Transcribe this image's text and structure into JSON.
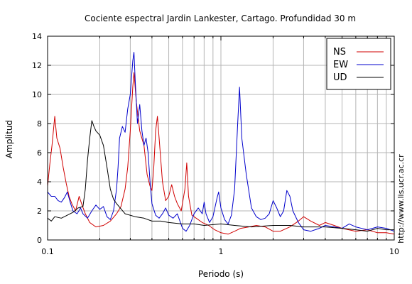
{
  "chart_data": {
    "type": "line",
    "title": "Cociente espectral Jardin Lankester, Cartago. Profundidad 30 m",
    "xlabel": "Periodo (s)",
    "ylabel": "Amplitud",
    "xscale": "log",
    "xlim": [
      0.1,
      10
    ],
    "ylim": [
      0,
      14
    ],
    "x_ticks": [
      0.1,
      1,
      10
    ],
    "x_tick_labels": [
      "0.1",
      "1",
      "10"
    ],
    "y_ticks": [
      0,
      2,
      4,
      6,
      8,
      10,
      12,
      14
    ],
    "y_tick_labels": [
      "0",
      "2",
      "4",
      "6",
      "8",
      "10",
      "12",
      "14"
    ],
    "grid": true,
    "legend_position": "top-right",
    "annotation": "http://www.lis.ucr.ac.cr",
    "series": [
      {
        "name": "NS",
        "color": "#d00000",
        "points": [
          [
            0.1,
            3.7
          ],
          [
            0.103,
            5.2
          ],
          [
            0.106,
            6.5
          ],
          [
            0.11,
            8.5
          ],
          [
            0.113,
            7.0
          ],
          [
            0.118,
            6.3
          ],
          [
            0.123,
            5.0
          ],
          [
            0.128,
            3.9
          ],
          [
            0.133,
            3.0
          ],
          [
            0.138,
            2.5
          ],
          [
            0.145,
            2.0
          ],
          [
            0.152,
            3.0
          ],
          [
            0.158,
            2.4
          ],
          [
            0.165,
            1.8
          ],
          [
            0.175,
            1.2
          ],
          [
            0.19,
            0.9
          ],
          [
            0.21,
            1.0
          ],
          [
            0.23,
            1.3
          ],
          [
            0.25,
            1.8
          ],
          [
            0.265,
            2.3
          ],
          [
            0.28,
            3.5
          ],
          [
            0.29,
            5.0
          ],
          [
            0.3,
            7.5
          ],
          [
            0.31,
            10.5
          ],
          [
            0.315,
            11.5
          ],
          [
            0.325,
            9.5
          ],
          [
            0.34,
            7.5
          ],
          [
            0.36,
            6.5
          ],
          [
            0.375,
            4.5
          ],
          [
            0.39,
            3.7
          ],
          [
            0.4,
            3.4
          ],
          [
            0.41,
            5.0
          ],
          [
            0.42,
            7.5
          ],
          [
            0.43,
            8.5
          ],
          [
            0.44,
            7.0
          ],
          [
            0.46,
            4.0
          ],
          [
            0.48,
            2.7
          ],
          [
            0.5,
            3.0
          ],
          [
            0.52,
            3.8
          ],
          [
            0.54,
            3.0
          ],
          [
            0.56,
            2.5
          ],
          [
            0.59,
            2.0
          ],
          [
            0.62,
            3.5
          ],
          [
            0.635,
            5.3
          ],
          [
            0.65,
            3.0
          ],
          [
            0.68,
            1.7
          ],
          [
            0.72,
            1.5
          ],
          [
            0.78,
            1.2
          ],
          [
            0.85,
            1.0
          ],
          [
            0.92,
            0.7
          ],
          [
            1.0,
            0.5
          ],
          [
            1.1,
            0.4
          ],
          [
            1.2,
            0.6
          ],
          [
            1.3,
            0.8
          ],
          [
            1.45,
            0.9
          ],
          [
            1.6,
            1.0
          ],
          [
            1.8,
            0.9
          ],
          [
            2.0,
            0.6
          ],
          [
            2.2,
            0.6
          ],
          [
            2.5,
            0.9
          ],
          [
            2.8,
            1.3
          ],
          [
            3.0,
            1.6
          ],
          [
            3.3,
            1.3
          ],
          [
            3.7,
            1.0
          ],
          [
            4.0,
            1.2
          ],
          [
            4.5,
            1.0
          ],
          [
            5.0,
            0.8
          ],
          [
            6.0,
            0.6
          ],
          [
            7.0,
            0.7
          ],
          [
            8.0,
            0.5
          ],
          [
            9.0,
            0.5
          ],
          [
            10.0,
            0.4
          ]
        ]
      },
      {
        "name": "EW",
        "color": "#0000cc",
        "points": [
          [
            0.1,
            3.3
          ],
          [
            0.105,
            3.0
          ],
          [
            0.11,
            3.0
          ],
          [
            0.115,
            2.7
          ],
          [
            0.12,
            2.6
          ],
          [
            0.125,
            2.9
          ],
          [
            0.13,
            3.3
          ],
          [
            0.135,
            2.6
          ],
          [
            0.14,
            2.0
          ],
          [
            0.148,
            1.8
          ],
          [
            0.155,
            2.2
          ],
          [
            0.16,
            1.8
          ],
          [
            0.17,
            1.5
          ],
          [
            0.18,
            2.0
          ],
          [
            0.19,
            2.4
          ],
          [
            0.2,
            2.1
          ],
          [
            0.21,
            2.3
          ],
          [
            0.22,
            1.6
          ],
          [
            0.23,
            1.4
          ],
          [
            0.24,
            2.0
          ],
          [
            0.25,
            3.5
          ],
          [
            0.255,
            5.0
          ],
          [
            0.26,
            7.0
          ],
          [
            0.27,
            7.8
          ],
          [
            0.28,
            7.4
          ],
          [
            0.29,
            9.0
          ],
          [
            0.3,
            10.0
          ],
          [
            0.31,
            12.3
          ],
          [
            0.315,
            12.9
          ],
          [
            0.32,
            11.0
          ],
          [
            0.33,
            8.0
          ],
          [
            0.34,
            9.3
          ],
          [
            0.35,
            7.5
          ],
          [
            0.36,
            6.5
          ],
          [
            0.37,
            7.0
          ],
          [
            0.38,
            6.0
          ],
          [
            0.39,
            4.0
          ],
          [
            0.4,
            2.5
          ],
          [
            0.42,
            1.7
          ],
          [
            0.44,
            1.5
          ],
          [
            0.46,
            1.8
          ],
          [
            0.48,
            2.2
          ],
          [
            0.5,
            1.7
          ],
          [
            0.53,
            1.5
          ],
          [
            0.56,
            1.8
          ],
          [
            0.58,
            1.3
          ],
          [
            0.6,
            0.8
          ],
          [
            0.63,
            0.6
          ],
          [
            0.66,
            1.0
          ],
          [
            0.7,
            1.8
          ],
          [
            0.74,
            2.2
          ],
          [
            0.78,
            1.8
          ],
          [
            0.8,
            2.6
          ],
          [
            0.82,
            1.8
          ],
          [
            0.86,
            1.2
          ],
          [
            0.9,
            1.6
          ],
          [
            0.95,
            2.9
          ],
          [
            0.97,
            3.3
          ],
          [
            1.0,
            2.2
          ],
          [
            1.05,
            1.4
          ],
          [
            1.1,
            1.1
          ],
          [
            1.15,
            1.7
          ],
          [
            1.2,
            3.5
          ],
          [
            1.25,
            8.0
          ],
          [
            1.28,
            10.5
          ],
          [
            1.32,
            7.0
          ],
          [
            1.4,
            4.5
          ],
          [
            1.5,
            2.2
          ],
          [
            1.6,
            1.6
          ],
          [
            1.7,
            1.4
          ],
          [
            1.8,
            1.5
          ],
          [
            1.9,
            1.8
          ],
          [
            2.0,
            2.7
          ],
          [
            2.1,
            2.2
          ],
          [
            2.2,
            1.6
          ],
          [
            2.3,
            2.0
          ],
          [
            2.4,
            3.4
          ],
          [
            2.5,
            3.0
          ],
          [
            2.6,
            2.0
          ],
          [
            2.8,
            1.2
          ],
          [
            3.0,
            0.7
          ],
          [
            3.3,
            0.6
          ],
          [
            3.7,
            0.8
          ],
          [
            4.0,
            1.0
          ],
          [
            4.5,
            0.9
          ],
          [
            5.0,
            0.8
          ],
          [
            5.5,
            1.1
          ],
          [
            6.0,
            0.9
          ],
          [
            7.0,
            0.7
          ],
          [
            8.0,
            0.9
          ],
          [
            9.0,
            0.8
          ],
          [
            10.0,
            0.6
          ]
        ]
      },
      {
        "name": "UD",
        "color": "#000000",
        "points": [
          [
            0.1,
            1.5
          ],
          [
            0.105,
            1.3
          ],
          [
            0.11,
            1.6
          ],
          [
            0.12,
            1.5
          ],
          [
            0.13,
            1.7
          ],
          [
            0.14,
            1.9
          ],
          [
            0.15,
            2.2
          ],
          [
            0.16,
            2.3
          ],
          [
            0.165,
            3.5
          ],
          [
            0.17,
            5.5
          ],
          [
            0.175,
            7.0
          ],
          [
            0.18,
            8.2
          ],
          [
            0.185,
            7.8
          ],
          [
            0.19,
            7.5
          ],
          [
            0.2,
            7.2
          ],
          [
            0.21,
            6.5
          ],
          [
            0.22,
            5.0
          ],
          [
            0.23,
            3.5
          ],
          [
            0.24,
            2.8
          ],
          [
            0.25,
            2.5
          ],
          [
            0.28,
            1.8
          ],
          [
            0.32,
            1.6
          ],
          [
            0.36,
            1.5
          ],
          [
            0.4,
            1.3
          ],
          [
            0.45,
            1.3
          ],
          [
            0.5,
            1.2
          ],
          [
            0.6,
            1.1
          ],
          [
            0.7,
            1.1
          ],
          [
            0.8,
            1.0
          ],
          [
            1.0,
            1.1
          ],
          [
            1.2,
            1.0
          ],
          [
            1.5,
            0.9
          ],
          [
            2.0,
            1.0
          ],
          [
            2.5,
            1.0
          ],
          [
            3.0,
            0.9
          ],
          [
            4.0,
            0.9
          ],
          [
            5.0,
            0.8
          ],
          [
            6.0,
            0.7
          ],
          [
            7.0,
            0.6
          ],
          [
            8.0,
            0.8
          ],
          [
            9.0,
            0.7
          ],
          [
            10.0,
            0.7
          ]
        ]
      }
    ]
  }
}
